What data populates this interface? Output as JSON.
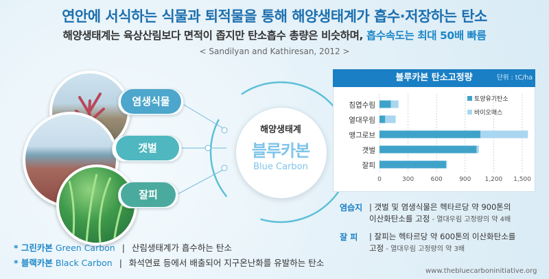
{
  "header": {
    "title": "연안에 서식하는 식물과 퇴적물을 통해 해양생태계가 흡수·저장하는 탄소",
    "subtitle_main": "해양생태계는 육상산림보다 면적이 좁지만 탄소흡수 총량은 비슷하며,",
    "subtitle_highlight": "흡수속도는 최대 50배 빠름",
    "citation": "< Sandilyan and Kathiresan, 2012 >"
  },
  "habitats": {
    "salt_marsh": "염생식물",
    "tidal_flat": "갯벌",
    "seagrass": "잘피"
  },
  "center": {
    "small": "해양생태계",
    "big": "블루카본",
    "en": "Blue Carbon"
  },
  "chart_panel": {
    "title": "블루카본 탄소고정량",
    "unit": "단위 : tC/ha"
  },
  "chart_data": {
    "type": "bar",
    "orientation": "horizontal",
    "stacked": true,
    "categories": [
      "침엽수림",
      "열대우림",
      "맹그로브",
      "갯벌",
      "잘피"
    ],
    "series": [
      {
        "name": "토양유기탄소",
        "values": [
          120,
          60,
          1060,
          1020,
          700
        ],
        "color": "#3fa3c9"
      },
      {
        "name": "바이오매스",
        "values": [
          80,
          110,
          500,
          25,
          10
        ],
        "color": "#a9d6f0"
      }
    ],
    "xticks": [
      "0",
      "300",
      "600",
      "900",
      "1,200",
      "1,500"
    ],
    "xlim": [
      0,
      1500
    ],
    "grid": true,
    "legend_position": "top-right"
  },
  "notes": [
    {
      "label": "염습지",
      "line1": "갯벌 및 염생식물은 헥타르당 약 900톤의",
      "line2": "이산화탄소를 고정",
      "small": " - 열대우림 고정량의 약 4배"
    },
    {
      "label": "잘  피",
      "line1": "잘피는 헥타르당 약 600톤의 이산화탄소를",
      "line2": "고정",
      "small": " - 열대우림 고정량의 약 3배"
    }
  ],
  "footnotes": [
    {
      "marker": "* 그린카본",
      "en": "Green Carbon",
      "sep": "|",
      "desc": "산림생태계가 흡수하는 탄소"
    },
    {
      "marker": "* 블랙카본",
      "en": "Black Carbon",
      "sep": "|",
      "desc": "화석연료 등에서 배출되어 지구온난화를 유발하는 탄소"
    }
  ],
  "source_url": "www.thebluecarboninitiative.org",
  "colors": {
    "accent": "#1a7fc4",
    "soil": "#3fa3c9",
    "biomass": "#a9d6f0"
  }
}
